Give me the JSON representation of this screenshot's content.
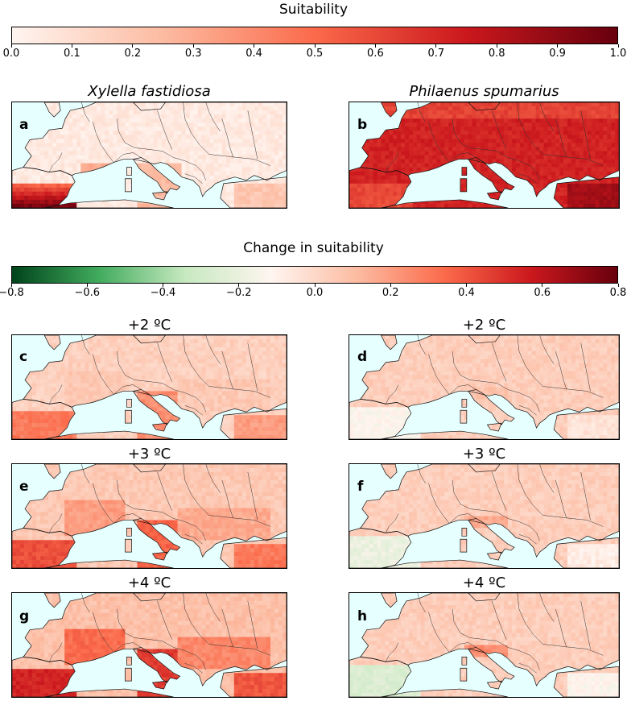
{
  "suitability_colorbar": {
    "title": "Suitability",
    "ticks": [
      "0.0",
      "0.1",
      "0.2",
      "0.3",
      "0.4",
      "0.5",
      "0.6",
      "0.7",
      "0.8",
      "0.9",
      "1.0"
    ],
    "range": [
      0.0,
      1.0
    ],
    "colors": [
      "#fff5f0",
      "#fcbba1",
      "#fb6a4a",
      "#cb181d",
      "#67000d"
    ]
  },
  "change_colorbar": {
    "title": "Change in suitability",
    "ticks": [
      "−0.8",
      "−0.6",
      "−0.4",
      "−0.2",
      "0.0",
      "0.2",
      "0.4",
      "0.6",
      "0.8"
    ],
    "range": [
      -0.8,
      0.8
    ],
    "colors": [
      "#00441b",
      "#41ab5d",
      "#c7e9c0",
      "#fff5f0",
      "#fcbba1",
      "#fb6a4a",
      "#cb181d",
      "#67000d"
    ]
  },
  "species": {
    "left": "Xylella fastidiosa",
    "right": "Philaenus spumarius"
  },
  "scenarios": {
    "plus2": "+2 ºC",
    "plus3": "+3 ºC",
    "plus4": "+4 ºC"
  },
  "panels": {
    "a": "a",
    "b": "b",
    "c": "c",
    "d": "d",
    "e": "e",
    "f": "f",
    "g": "g",
    "h": "h"
  },
  "colors": {
    "sea": "#e6ffff",
    "border": "#333333"
  }
}
